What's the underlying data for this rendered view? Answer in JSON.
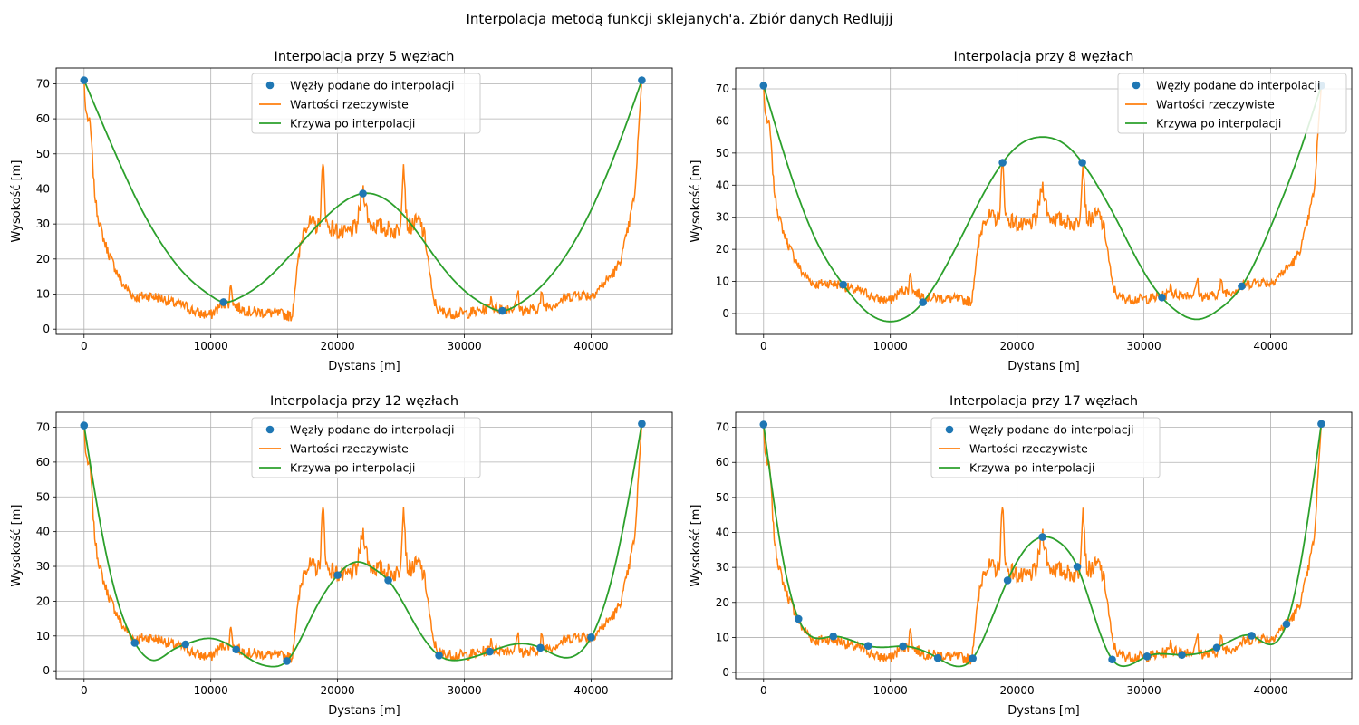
{
  "figure": {
    "suptitle": "Interpolacja metodą funkcji sklejanych'a. Zbiór danych Redlujjj"
  },
  "colors": {
    "nodes": "#1f77b4",
    "actual": "#ff7f0e",
    "interp": "#2ca02c",
    "grid": "#b0b0b0"
  },
  "chart_data": [
    {
      "type": "line",
      "title": "Interpolacja przy 5 węzłach",
      "xlabel": "Dystans [m]",
      "ylabel": "Wysokość [m]",
      "xlim": [
        -2200,
        46400
      ],
      "ylim": [
        -1.5,
        74.5
      ],
      "xticks": [
        0,
        10000,
        20000,
        30000,
        40000
      ],
      "yticks": [
        0,
        10,
        20,
        30,
        40,
        50,
        60,
        70
      ],
      "grid": true,
      "legend": {
        "position": "top-center",
        "entries": [
          "Węzły podane do interpolacji",
          "Wartości rzeczywiste",
          "Krzywa po interpolacji"
        ]
      },
      "series": [
        {
          "name": "Węzły podane do interpolacji",
          "kind": "points",
          "x": [
            0,
            11000,
            22000,
            33000,
            44000
          ],
          "y": [
            71,
            7.7,
            38.7,
            5.2,
            71
          ]
        },
        {
          "name": "Krzywa po interpolacji",
          "kind": "line",
          "x": [
            0,
            2000,
            4000,
            6000,
            8000,
            10000,
            11000,
            12000,
            14000,
            16000,
            18000,
            20000,
            22000,
            24000,
            26000,
            28000,
            30000,
            32000,
            33000,
            34000,
            36000,
            38000,
            40000,
            42000,
            44000
          ],
          "y": [
            71,
            54,
            38,
            25,
            15.5,
            9.5,
            7.7,
            8.5,
            13,
            20,
            28,
            35,
            38.7,
            36.5,
            29,
            19,
            11,
            6.2,
            5.2,
            6.5,
            12,
            21,
            34,
            51,
            71
          ]
        }
      ]
    },
    {
      "type": "line",
      "title": "Interpolacja przy 8 węzłach",
      "xlabel": "Dystans [m]",
      "ylabel": "Wysokość [m]",
      "xlim": [
        -2200,
        46400
      ],
      "ylim": [
        -6.5,
        76.5
      ],
      "xticks": [
        0,
        10000,
        20000,
        30000,
        40000
      ],
      "yticks": [
        0,
        10,
        20,
        30,
        40,
        50,
        60,
        70
      ],
      "grid": true,
      "legend": {
        "position": "top-right",
        "entries": [
          "Węzły podane do interpolacji",
          "Wartości rzeczywiste",
          "Krzywa po interpolacji"
        ]
      },
      "series": [
        {
          "name": "Węzły podane do interpolacji",
          "kind": "points",
          "x": [
            0,
            6286,
            12571,
            18857,
            25143,
            31429,
            37714,
            44000
          ],
          "y": [
            71,
            9,
            3.5,
            47,
            47,
            5,
            8.5,
            71
          ]
        },
        {
          "name": "Krzywa po interpolacji",
          "kind": "line",
          "x": [
            0,
            2000,
            4000,
            6286,
            8000,
            10000,
            12571,
            14000,
            16000,
            18857,
            20000,
            22000,
            24000,
            25143,
            26000,
            28000,
            30000,
            31429,
            32500,
            34300,
            36000,
            37714,
            40000,
            42000,
            44000
          ],
          "y": [
            71,
            45,
            24,
            9,
            1,
            -2.5,
            3.5,
            12,
            27,
            47,
            52,
            55,
            52,
            47,
            42,
            28,
            13,
            5,
            1,
            -1.8,
            1.5,
            8.5,
            27,
            47,
            71
          ]
        }
      ]
    },
    {
      "type": "line",
      "title": "Interpolacja przy 12 węzłach",
      "xlabel": "Dystans [m]",
      "ylabel": "Wysokość [m]",
      "xlim": [
        -2200,
        46400
      ],
      "ylim": [
        -2.3,
        74.3
      ],
      "xticks": [
        0,
        10000,
        20000,
        30000,
        40000
      ],
      "yticks": [
        0,
        10,
        20,
        30,
        40,
        50,
        60,
        70
      ],
      "grid": true,
      "legend": {
        "position": "top-center",
        "entries": [
          "Węzły podane do interpolacji",
          "Wartości rzeczywiste",
          "Krzywa po interpolacji"
        ]
      },
      "series": [
        {
          "name": "Węzły podane do interpolacji",
          "kind": "points",
          "x": [
            0,
            4000,
            8000,
            12000,
            16000,
            20000,
            24000,
            28000,
            32000,
            36000,
            40000,
            44000
          ],
          "y": [
            70.5,
            8,
            7.6,
            6.1,
            2.8,
            27.5,
            26,
            4.4,
            5.5,
            6.6,
            9.6,
            71
          ]
        },
        {
          "name": "Krzywa po interpolacji",
          "kind": "line",
          "x": [
            0,
            1500,
            3000,
            4000,
            5500,
            7000,
            8000,
            10000,
            12000,
            13500,
            14800,
            16000,
            18000,
            20000,
            21500,
            23000,
            24000,
            26000,
            28000,
            30000,
            32000,
            34500,
            36000,
            37800,
            40000,
            42000,
            44000
          ],
          "y": [
            70.5,
            38,
            16,
            8,
            3,
            6,
            7.6,
            9.3,
            6.1,
            2.5,
            1.2,
            2.8,
            16,
            27.5,
            31.3,
            29,
            26,
            14,
            4.4,
            3.3,
            5.5,
            7.8,
            6.6,
            3.8,
            9.6,
            32,
            71
          ]
        }
      ]
    },
    {
      "type": "line",
      "title": "Interpolacja przy 17 węzłach",
      "xlabel": "Dystans [m]",
      "ylabel": "Wysokość [m]",
      "xlim": [
        -2200,
        46400
      ],
      "ylim": [
        -1.8,
        74.3
      ],
      "xticks": [
        0,
        10000,
        20000,
        30000,
        40000
      ],
      "yticks": [
        0,
        10,
        20,
        30,
        40,
        50,
        60,
        70
      ],
      "grid": true,
      "legend": {
        "position": "top-center",
        "entries": [
          "Węzły podane do interpolacji",
          "Wartości rzeczywiste",
          "Krzywa po interpolacji"
        ]
      },
      "series": [
        {
          "name": "Węzły podane do interpolacji",
          "kind": "points",
          "x": [
            0,
            2750,
            5500,
            8250,
            11000,
            13750,
            16500,
            19250,
            22000,
            24750,
            27500,
            30250,
            33000,
            35750,
            38500,
            41250,
            44000
          ],
          "y": [
            70.8,
            15.3,
            10.3,
            7.6,
            7.5,
            4.1,
            4,
            26.3,
            38.7,
            30.2,
            3.7,
            4.6,
            5,
            7.1,
            10.5,
            13.8,
            71
          ]
        },
        {
          "name": "Krzywa po interpolacji",
          "kind": "line",
          "x": [
            0,
            1400,
            2750,
            4100,
            5500,
            6900,
            8250,
            9600,
            11000,
            12300,
            13750,
            15400,
            16500,
            17900,
            19250,
            20600,
            22000,
            23400,
            24750,
            26100,
            27500,
            28300,
            30250,
            31600,
            33000,
            34400,
            35750,
            37100,
            38500,
            39900,
            41250,
            42600,
            44000
          ],
          "y": [
            70.8,
            35,
            15.3,
            9.8,
            10.3,
            9.2,
            7.6,
            7.2,
            7.5,
            6.6,
            4.1,
            1.7,
            4,
            14.5,
            26.3,
            35,
            38.7,
            37,
            30.2,
            16,
            3.7,
            1.8,
            4.6,
            5.3,
            5,
            5.5,
            7.1,
            9.5,
            10.5,
            8,
            13.8,
            36,
            71
          ]
        }
      ]
    }
  ]
}
